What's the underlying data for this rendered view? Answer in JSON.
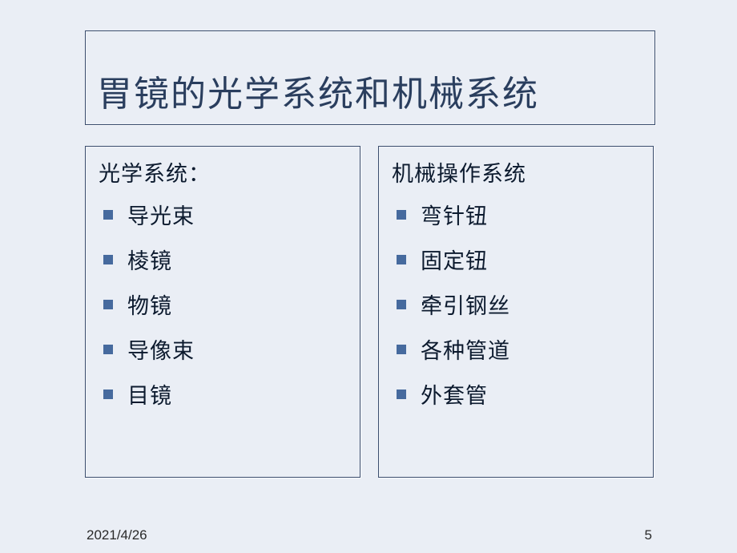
{
  "slide": {
    "background_color": "#eaeef5",
    "border_color": "#3b4d6d",
    "bullet_color": "#466a9e",
    "title_color": "#2a3e5e",
    "text_color": "#0c1a2e",
    "title": "胃镜的光学系统和机械系统",
    "left": {
      "heading": "光学系统：",
      "items": [
        "导光束",
        "棱镜",
        "物镜",
        "导像束",
        "目镜"
      ]
    },
    "right": {
      "heading": "机械操作系统",
      "items": [
        "弯针钮",
        "固定钮",
        "牵引钢丝",
        "各种管道",
        "外套管"
      ]
    },
    "footer": {
      "date": "2021/4/26",
      "page": "5"
    }
  }
}
